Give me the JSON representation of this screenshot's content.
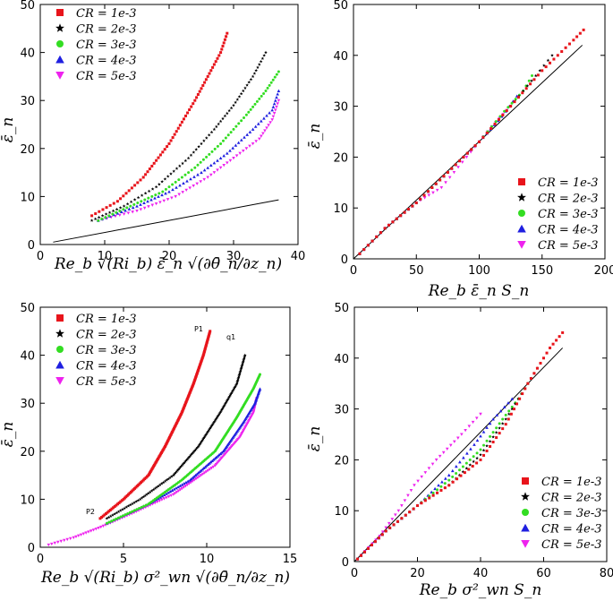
{
  "series_colors": [
    "#e8141b",
    "#000000",
    "#33dd22",
    "#1f1fe0",
    "#ee22ee"
  ],
  "chart_data": [
    {
      "type": "scatter",
      "panel": "top-left",
      "xlabel": "Re_b √(Ri_b) ε̄_n √(∂θ̄_n/∂z_n)",
      "ylabel": "ε̄_n",
      "xlim": [
        0,
        40
      ],
      "ylim": [
        0,
        50
      ],
      "xticks": [
        "0",
        "10",
        "20",
        "30",
        "40"
      ],
      "yticks": [
        "0",
        "10",
        "20",
        "30",
        "40",
        "50"
      ],
      "legend_position": "top-left",
      "series": [
        {
          "name": "CR = 1e-3",
          "marker": "square",
          "points": [
            [
              8,
              6
            ],
            [
              12,
              9
            ],
            [
              16,
              14
            ],
            [
              20,
              21
            ],
            [
              24,
              30
            ],
            [
              26,
              35
            ],
            [
              28,
              40
            ],
            [
              29,
              44
            ]
          ]
        },
        {
          "name": "CR = 2e-3",
          "marker": "star",
          "points": [
            [
              8,
              5
            ],
            [
              13,
              8
            ],
            [
              18,
              12
            ],
            [
              23,
              18
            ],
            [
              27,
              24
            ],
            [
              30,
              29
            ],
            [
              33,
              35
            ],
            [
              35,
              40
            ]
          ]
        },
        {
          "name": "CR = 3e-3",
          "marker": "circle",
          "points": [
            [
              9,
              5
            ],
            [
              14,
              8
            ],
            [
              19,
              11
            ],
            [
              24,
              16
            ],
            [
              28,
              21
            ],
            [
              32,
              27
            ],
            [
              35,
              32
            ],
            [
              37,
              36
            ]
          ]
        },
        {
          "name": "CR = 4e-3",
          "marker": "triangle-up",
          "points": [
            [
              9,
              5
            ],
            [
              15,
              8
            ],
            [
              20,
              11
            ],
            [
              25,
              15
            ],
            [
              29,
              19
            ],
            [
              33,
              24
            ],
            [
              36,
              28
            ],
            [
              37,
              32
            ]
          ]
        },
        {
          "name": "CR = 5e-3",
          "marker": "triangle-down",
          "points": [
            [
              9,
              5
            ],
            [
              15,
              7
            ],
            [
              21,
              10
            ],
            [
              26,
              14
            ],
            [
              30,
              18
            ],
            [
              34,
              22
            ],
            [
              36,
              26
            ],
            [
              37,
              30
            ]
          ]
        }
      ],
      "reference_line": [
        [
          2,
          0.5
        ],
        [
          37,
          9.3
        ]
      ]
    },
    {
      "type": "scatter",
      "panel": "top-right",
      "xlabel": "Re_b ε̄_n S_n",
      "ylabel": "ε̄_n",
      "xlim": [
        0,
        200
      ],
      "ylim": [
        0,
        50
      ],
      "xticks": [
        "0",
        "50",
        "100",
        "150",
        "200"
      ],
      "yticks": [
        "0",
        "10",
        "20",
        "30",
        "40",
        "50"
      ],
      "legend_position": "bottom-right",
      "series": [
        {
          "name": "CR = 1e-3",
          "marker": "square",
          "points": [
            [
              5,
              1
            ],
            [
              25,
              6
            ],
            [
              50,
              11
            ],
            [
              75,
              17
            ],
            [
              100,
              23
            ],
            [
              125,
              30
            ],
            [
              150,
              37
            ],
            [
              175,
              43
            ],
            [
              183,
              45
            ]
          ]
        },
        {
          "name": "CR = 2e-3",
          "marker": "star",
          "points": [
            [
              5,
              1
            ],
            [
              25,
              6
            ],
            [
              50,
              11
            ],
            [
              75,
              17
            ],
            [
              100,
              23
            ],
            [
              125,
              30
            ],
            [
              145,
              36
            ],
            [
              158,
              40
            ]
          ]
        },
        {
          "name": "CR = 3e-3",
          "marker": "circle",
          "points": [
            [
              5,
              1
            ],
            [
              25,
              6
            ],
            [
              50,
              11
            ],
            [
              75,
              17
            ],
            [
              100,
              23
            ],
            [
              120,
              29
            ],
            [
              135,
              33
            ],
            [
              142,
              36
            ]
          ]
        },
        {
          "name": "CR = 4e-3",
          "marker": "triangle-up",
          "points": [
            [
              5,
              1
            ],
            [
              25,
              6
            ],
            [
              50,
              11
            ],
            [
              75,
              17
            ],
            [
              100,
              23
            ],
            [
              118,
              28
            ],
            [
              130,
              32
            ]
          ]
        },
        {
          "name": "CR = 5e-3",
          "marker": "triangle-down",
          "points": [
            [
              5,
              1
            ],
            [
              25,
              6
            ],
            [
              50,
              11
            ],
            [
              70,
              14
            ],
            [
              90,
              20
            ],
            [
              110,
              26
            ],
            [
              125,
              30
            ]
          ]
        }
      ],
      "reference_line": [
        [
          0,
          0
        ],
        [
          182,
          42
        ]
      ]
    },
    {
      "type": "scatter",
      "panel": "bottom-left",
      "xlabel": "Re_b √(Ri_b) σ²_wn √(∂θ̄_n/∂z_n)",
      "ylabel": "ε̄_n",
      "xlim": [
        0,
        15
      ],
      "ylim": [
        0,
        50
      ],
      "xticks": [
        "0",
        "5",
        "10",
        "15"
      ],
      "yticks": [
        "0",
        "10",
        "20",
        "30",
        "40",
        "50"
      ],
      "legend_position": "top-left",
      "annotations": [
        "P1",
        "q1",
        "P2"
      ],
      "series": [
        {
          "name": "CR = 1e-3",
          "marker": "square",
          "points": [
            [
              3.6,
              6
            ],
            [
              5,
              10
            ],
            [
              6.5,
              15
            ],
            [
              7.5,
              21
            ],
            [
              8.5,
              28
            ],
            [
              9.2,
              34
            ],
            [
              9.8,
              40
            ],
            [
              10.2,
              45
            ]
          ]
        },
        {
          "name": "CR = 2e-3",
          "marker": "star",
          "points": [
            [
              4,
              6
            ],
            [
              6,
              10
            ],
            [
              8,
              15
            ],
            [
              9.5,
              21
            ],
            [
              10.8,
              28
            ],
            [
              11.8,
              34
            ],
            [
              12.3,
              40
            ]
          ]
        },
        {
          "name": "CR = 3e-3",
          "marker": "circle",
          "points": [
            [
              4,
              5
            ],
            [
              6.5,
              9
            ],
            [
              8.5,
              14
            ],
            [
              10.5,
              20
            ],
            [
              11.8,
              27
            ],
            [
              12.8,
              33
            ],
            [
              13.2,
              36
            ]
          ]
        },
        {
          "name": "CR = 4e-3",
          "marker": "triangle-up",
          "points": [
            [
              4,
              5
            ],
            [
              6.5,
              9
            ],
            [
              9,
              14
            ],
            [
              11,
              20
            ],
            [
              12.2,
              26
            ],
            [
              12.9,
              30
            ],
            [
              13.2,
              33
            ]
          ]
        },
        {
          "name": "CR = 5e-3",
          "marker": "triangle-down",
          "points": [
            [
              0.5,
              0.5
            ],
            [
              2,
              2
            ],
            [
              3.5,
              4
            ],
            [
              5.5,
              7
            ],
            [
              8,
              11
            ],
            [
              10.5,
              17
            ],
            [
              12,
              23
            ],
            [
              12.8,
              28
            ],
            [
              13,
              31
            ]
          ]
        }
      ]
    },
    {
      "type": "scatter",
      "panel": "bottom-right",
      "xlabel": "Re_b σ²_wn S_n",
      "ylabel": "ε̄_n",
      "xlim": [
        0,
        80
      ],
      "ylim": [
        0,
        50
      ],
      "xticks": [
        "0",
        "20",
        "40",
        "60",
        "80"
      ],
      "yticks": [
        "0",
        "10",
        "20",
        "30",
        "40",
        "50"
      ],
      "legend_position": "bottom-right",
      "series": [
        {
          "name": "CR = 1e-3",
          "marker": "square",
          "points": [
            [
              1,
              0.5
            ],
            [
              10,
              6
            ],
            [
              20,
              11
            ],
            [
              30,
              15
            ],
            [
              40,
              20
            ],
            [
              48,
              27
            ],
            [
              55,
              35
            ],
            [
              62,
              42
            ],
            [
              66,
              45
            ]
          ]
        },
        {
          "name": "CR = 2e-3",
          "marker": "star",
          "points": [
            [
              1,
              0.5
            ],
            [
              10,
              6
            ],
            [
              20,
              11
            ],
            [
              30,
              15
            ],
            [
              40,
              21
            ],
            [
              48,
              28
            ],
            [
              54,
              34
            ],
            [
              58,
              38
            ]
          ]
        },
        {
          "name": "CR = 3e-3",
          "marker": "circle",
          "points": [
            [
              1,
              0.5
            ],
            [
              10,
              6
            ],
            [
              20,
              11
            ],
            [
              30,
              16
            ],
            [
              40,
              22
            ],
            [
              47,
              28
            ],
            [
              52,
              32
            ],
            [
              55,
              35
            ]
          ]
        },
        {
          "name": "CR = 4e-3",
          "marker": "triangle-up",
          "points": [
            [
              1,
              0.5
            ],
            [
              10,
              6
            ],
            [
              20,
              11
            ],
            [
              30,
              17
            ],
            [
              38,
              23
            ],
            [
              44,
              28
            ],
            [
              50,
              32
            ]
          ]
        },
        {
          "name": "CR = 5e-3",
          "marker": "triangle-down",
          "points": [
            [
              1,
              0.5
            ],
            [
              8,
              5
            ],
            [
              14,
              10
            ],
            [
              19,
              15
            ],
            [
              26,
              20
            ],
            [
              34,
              25
            ],
            [
              40,
              29
            ]
          ]
        }
      ],
      "reference_line": [
        [
          0,
          0
        ],
        [
          66,
          42
        ]
      ]
    }
  ]
}
